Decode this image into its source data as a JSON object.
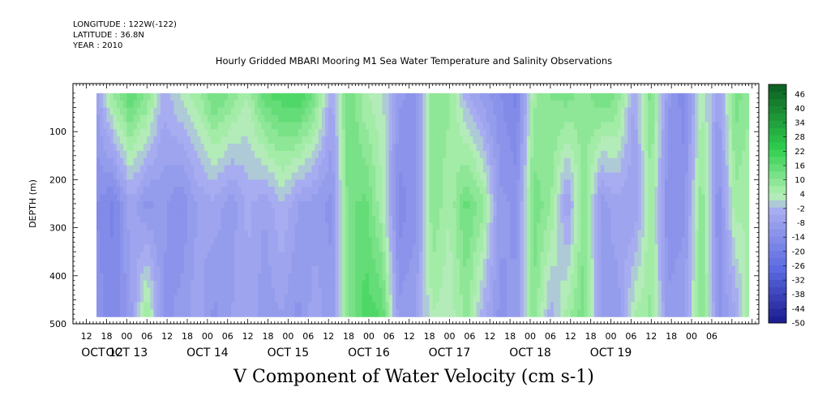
{
  "header": {
    "longitude": "LONGITUDE : 122W(-122)",
    "latitude": "LATITUDE : 36.8N",
    "year": "YEAR : 2010"
  },
  "chart_data": {
    "type": "heatmap",
    "title": "Hourly Gridded MBARI Mooring M1 Sea Water Temperature and Salinity Observations",
    "xlabel": "V Component of Water Velocity (cm s-1)",
    "ylabel": "DEPTH (m)",
    "ylim": [
      500,
      0
    ],
    "y_ticks": [
      100,
      200,
      300,
      400,
      500
    ],
    "hour_ticks": [
      "12",
      "18",
      "00",
      "06",
      "12",
      "18",
      "00",
      "06",
      "12",
      "18",
      "00",
      "06",
      "12",
      "18",
      "00",
      "06",
      "12",
      "18",
      "00",
      "06",
      "12",
      "18",
      "00",
      "06",
      "12",
      "18",
      "00",
      "06",
      "12",
      "18",
      "00",
      "06"
    ],
    "date_labels": [
      "OCT 12",
      "OCT 13",
      "OCT 14",
      "OCT 15",
      "OCT 16",
      "OCT 17",
      "OCT 18",
      "OCT 19"
    ],
    "data_depth_range": [
      20,
      485
    ],
    "colorbar": {
      "min": -50,
      "max": 50,
      "step": 3,
      "labels": [
        "46",
        "40",
        "34",
        "28",
        "22",
        "16",
        "10",
        "4",
        "-2",
        "-8",
        "-14",
        "-20",
        "-26",
        "-32",
        "-38",
        "-44",
        "-50"
      ],
      "colors": {
        "strong_negative": "#1a1a8c",
        "mid_negative": "#5a68e0",
        "weak_negative": "#a9aef0",
        "weak_positive": "#b4f0b4",
        "mid_positive": "#2fcf4f",
        "strong_positive": "#0b5a1e"
      }
    },
    "x_axis": "hours since OCT 12 00:00",
    "x_range": [
      8,
      212
    ],
    "data_time_range": [
      15,
      209
    ],
    "columns": [
      {
        "t": 15,
        "top": -8,
        "mid": -14,
        "bot": -12
      },
      {
        "t": 20,
        "top": 8,
        "mid": -18,
        "bot": -16
      },
      {
        "t": 25,
        "top": 16,
        "mid": -6,
        "bot": -10
      },
      {
        "t": 30,
        "top": 10,
        "mid": -12,
        "bot": 8
      },
      {
        "t": 35,
        "top": -4,
        "mid": -10,
        "bot": -12
      },
      {
        "t": 40,
        "top": 2,
        "mid": -14,
        "bot": -10
      },
      {
        "t": 45,
        "top": 6,
        "mid": -8,
        "bot": -6
      },
      {
        "t": 50,
        "top": 14,
        "mid": -6,
        "bot": -12
      },
      {
        "t": 55,
        "top": 10,
        "mid": -10,
        "bot": -8
      },
      {
        "t": 60,
        "top": 4,
        "mid": -4,
        "bot": -6
      },
      {
        "t": 65,
        "top": 16,
        "mid": -8,
        "bot": -10
      },
      {
        "t": 70,
        "top": 18,
        "mid": -2,
        "bot": -8
      },
      {
        "t": 75,
        "top": 20,
        "mid": -8,
        "bot": -12
      },
      {
        "t": 80,
        "top": 12,
        "mid": -10,
        "bot": -6
      },
      {
        "t": 85,
        "top": -6,
        "mid": -12,
        "bot": -10
      },
      {
        "t": 90,
        "top": 14,
        "mid": 12,
        "bot": 10
      },
      {
        "t": 95,
        "top": 4,
        "mid": 14,
        "bot": 18
      },
      {
        "t": 100,
        "top": 2,
        "mid": 4,
        "bot": 16
      },
      {
        "t": 105,
        "top": -10,
        "mid": -16,
        "bot": -10
      },
      {
        "t": 110,
        "top": -12,
        "mid": -12,
        "bot": -8
      },
      {
        "t": 115,
        "top": 10,
        "mid": 10,
        "bot": 4
      },
      {
        "t": 120,
        "top": 8,
        "mid": 4,
        "bot": 2
      },
      {
        "t": 125,
        "top": -4,
        "mid": 14,
        "bot": 8
      },
      {
        "t": 130,
        "top": -10,
        "mid": 8,
        "bot": -4
      },
      {
        "t": 135,
        "top": -14,
        "mid": -10,
        "bot": -12
      },
      {
        "t": 140,
        "top": -18,
        "mid": -12,
        "bot": -10
      },
      {
        "t": 145,
        "top": 6,
        "mid": 12,
        "bot": 10
      },
      {
        "t": 150,
        "top": 10,
        "mid": 8,
        "bot": -4
      },
      {
        "t": 155,
        "top": 12,
        "mid": -8,
        "bot": 6
      },
      {
        "t": 160,
        "top": 8,
        "mid": 10,
        "bot": 12
      },
      {
        "t": 165,
        "top": 14,
        "mid": -10,
        "bot": -8
      },
      {
        "t": 170,
        "top": 10,
        "mid": -6,
        "bot": -10
      },
      {
        "t": 175,
        "top": -6,
        "mid": -8,
        "bot": 4
      },
      {
        "t": 180,
        "top": 12,
        "mid": 6,
        "bot": 8
      },
      {
        "t": 185,
        "top": -10,
        "mid": -14,
        "bot": -10
      },
      {
        "t": 190,
        "top": -16,
        "mid": -12,
        "bot": -8
      },
      {
        "t": 195,
        "top": 4,
        "mid": 10,
        "bot": 12
      },
      {
        "t": 200,
        "top": -8,
        "mid": -14,
        "bot": -12
      },
      {
        "t": 205,
        "top": 12,
        "mid": 6,
        "bot": -6
      },
      {
        "t": 209,
        "top": 8,
        "mid": 4,
        "bot": 6
      }
    ]
  }
}
